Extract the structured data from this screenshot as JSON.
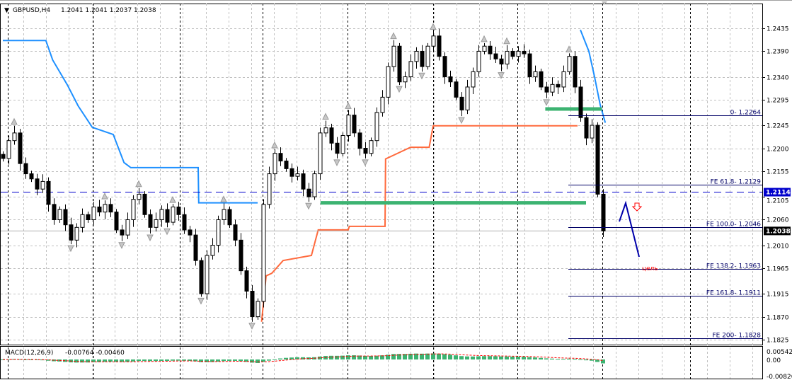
{
  "header": {
    "symbol": "GBPUSD,H4",
    "ohlc": "1.2041 1.2041 1.2037 1.2038"
  },
  "macd_header": {
    "label": "MACD(12,26,9)",
    "values": "-0.00764 -0.00460"
  },
  "colors": {
    "bull_bear_candle": "#000000",
    "upper_trail": "#1e90ff",
    "lower_trail": "#ff6a3d",
    "support_band": "#3cb371",
    "fib_line": "#000066",
    "hline": "#0000cc",
    "macd_hist": "#3cb371",
    "macd_signal": "#ff0000",
    "target_text": "#ff0000"
  },
  "chart_data": {
    "type": "candlestick",
    "price_axis": {
      "ticks": [
        "1.2435",
        "1.2390",
        "1.2340",
        "1.2295",
        "1.2245",
        "1.2200",
        "1.2155",
        "1.2105",
        "1.2060",
        "1.2010",
        "1.1965",
        "1.1915",
        "1.1870",
        "1.1825"
      ],
      "range": [
        1.1815,
        1.2475
      ]
    },
    "grid": true,
    "closes": [
      1.218,
      1.2215,
      1.223,
      1.217,
      1.215,
      1.214,
      1.212,
      1.2135,
      1.209,
      1.206,
      1.208,
      1.205,
      1.202,
      1.2045,
      1.207,
      1.206,
      1.2085,
      1.2075,
      1.209,
      1.2075,
      1.204,
      1.203,
      1.206,
      1.21,
      1.211,
      1.207,
      1.2045,
      1.206,
      1.208,
      1.2055,
      1.2085,
      1.207,
      1.204,
      1.203,
      1.198,
      1.1915,
      1.199,
      1.201,
      1.206,
      1.208,
      1.205,
      1.202,
      1.196,
      1.192,
      1.187,
      1.19,
      1.209,
      1.215,
      1.219,
      1.2175,
      1.216,
      1.2145,
      1.215,
      1.212,
      1.2105,
      1.215,
      1.223,
      1.224,
      1.221,
      1.219,
      1.2225,
      1.2265,
      1.223,
      1.22,
      1.219,
      1.2215,
      1.227,
      1.23,
      1.236,
      1.24,
      1.233,
      1.234,
      1.237,
      1.239,
      1.236,
      1.24,
      1.242,
      1.238,
      1.234,
      1.233,
      1.23,
      1.2275,
      1.232,
      1.235,
      1.239,
      1.24,
      1.2385,
      1.2375,
      1.2365,
      1.239,
      1.238,
      1.239,
      1.2385,
      1.234,
      1.235,
      1.232,
      1.231,
      1.2325,
      1.232,
      1.235,
      1.238,
      1.232,
      1.226,
      1.222,
      1.2245,
      1.211,
      1.2038
    ],
    "upper_trail": [
      [
        0,
        1.2411
      ],
      [
        7.6,
        1.2411
      ],
      [
        8.8,
        1.2373
      ],
      [
        11.4,
        1.2324
      ],
      [
        13.3,
        1.2283
      ],
      [
        15.8,
        1.2241
      ],
      [
        19.5,
        1.2227
      ],
      [
        21.4,
        1.2172
      ],
      [
        22.6,
        1.2162
      ],
      [
        34.5,
        1.2162
      ],
      [
        34.6,
        1.2093
      ],
      [
        45,
        1.2093
      ]
    ],
    "upper_trail_2": [
      [
        102,
        1.2432
      ],
      [
        103.5,
        1.239
      ],
      [
        104.5,
        1.234
      ],
      [
        105.5,
        1.2285
      ],
      [
        106.4,
        1.225
      ]
    ],
    "lower_trail": [
      [
        45.7,
        1.186
      ],
      [
        46.5,
        1.195
      ],
      [
        47.5,
        1.1955
      ],
      [
        49.5,
        1.198
      ],
      [
        54.5,
        1.199
      ],
      [
        55.7,
        1.204
      ],
      [
        61,
        1.204
      ],
      [
        61.2,
        1.2047
      ],
      [
        67.5,
        1.2047
      ],
      [
        67.6,
        1.2179
      ],
      [
        72,
        1.2202
      ],
      [
        75.3,
        1.2202
      ],
      [
        76,
        1.2244
      ],
      [
        101.5,
        1.2244
      ]
    ],
    "support_bands": [
      {
        "from": 56.1,
        "to": 103,
        "price": 1.2093
      },
      {
        "from": 95.8,
        "to": 105.8,
        "price": 1.2277
      }
    ],
    "hline": {
      "price": 1.2114,
      "label": "1.2114"
    },
    "current_price": {
      "price": 1.2038,
      "label": "1.2038"
    },
    "fib_levels": [
      {
        "label": "0- 1.2264",
        "price": 1.2264
      },
      {
        "label": "FE 61.8- 1.2129",
        "price": 1.2129
      },
      {
        "label": "FE 100.0- 1.2046",
        "price": 1.2046
      },
      {
        "label": "FE 138.2- 1.1963",
        "price": 1.1963
      },
      {
        "label": "FE 161.8- 1.1911",
        "price": 1.1911
      },
      {
        "label": "FE 200- 1.1828",
        "price": 1.1828
      }
    ],
    "target_label": "цель",
    "macd": {
      "fast": 12,
      "slow": 26,
      "signal": 9,
      "axis_ticks": [
        "0.00542",
        "0.00",
        "-0.00826"
      ],
      "range": [
        -0.0092,
        0.0075
      ]
    }
  }
}
